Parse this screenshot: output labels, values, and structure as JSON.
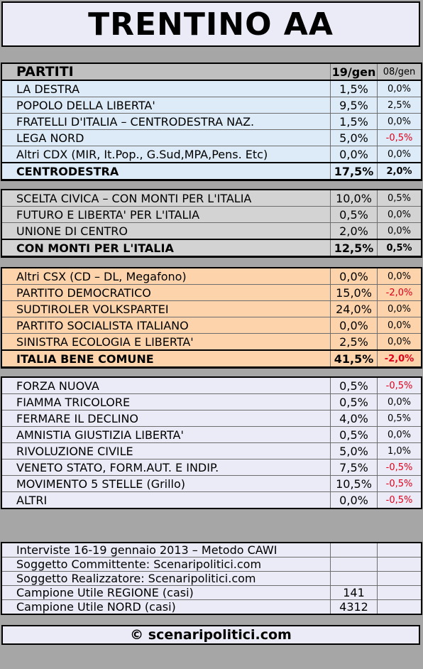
{
  "title": "TRENTINO AA",
  "chart_data": {
    "type": "table",
    "header": {
      "party": "PARTITI",
      "col1": "19/gen",
      "col2": "08/gen"
    },
    "groups": [
      {
        "color": "#dcebf7",
        "rows": [
          {
            "name": "LA DESTRA",
            "value": "1,5%",
            "delta": "0,0%"
          },
          {
            "name": "POPOLO DELLA LIBERTA'",
            "value": "9,5%",
            "delta": "2,5%"
          },
          {
            "name": "FRATELLI D'ITALIA – CENTRODESTRA NAZ.",
            "value": "1,5%",
            "delta": "0,0%"
          },
          {
            "name": "LEGA NORD",
            "value": "5,0%",
            "delta": "-0,5%"
          },
          {
            "name": "Altri CDX (MIR, It.Pop., G.Sud,MPA,Pens. Etc)",
            "value": "0,0%",
            "delta": "0,0%"
          }
        ],
        "total": {
          "name": "CENTRODESTRA",
          "value": "17,5%",
          "delta": "2,0%"
        }
      },
      {
        "color": "#d3d3d3",
        "rows": [
          {
            "name": "SCELTA CIVICA – CON MONTI PER L'ITALIA",
            "value": "10,0%",
            "delta": "0,5%"
          },
          {
            "name": "FUTURO E LIBERTA' PER L'ITALIA",
            "value": "0,5%",
            "delta": "0,0%"
          },
          {
            "name": "UNIONE DI CENTRO",
            "value": "2,0%",
            "delta": "0,0%"
          }
        ],
        "total": {
          "name": "CON MONTI PER L'ITALIA",
          "value": "12,5%",
          "delta": "0,5%"
        }
      },
      {
        "color": "#fcd3aa",
        "rows": [
          {
            "name": "Altri CSX (CD – DL, Megafono)",
            "value": "0,0%",
            "delta": "0,0%"
          },
          {
            "name": "PARTITO DEMOCRATICO",
            "value": "15,0%",
            "delta": "-2,0%"
          },
          {
            "name": "SUDTIROLER VOLKSPARTEI",
            "value": "24,0%",
            "delta": "0,0%"
          },
          {
            "name": "PARTITO SOCIALISTA ITALIANO",
            "value": "0,0%",
            "delta": "0,0%"
          },
          {
            "name": "SINISTRA ECOLOGIA E LIBERTA'",
            "value": "2,5%",
            "delta": "0,0%"
          }
        ],
        "total": {
          "name": "ITALIA BENE COMUNE",
          "value": "41,5%",
          "delta": "-2,0%"
        }
      },
      {
        "color": "#ebebf7",
        "rows": [
          {
            "name": "FORZA NUOVA",
            "value": "0,5%",
            "delta": "-0,5%"
          },
          {
            "name": "FIAMMA TRICOLORE",
            "value": "0,5%",
            "delta": "0,0%"
          },
          {
            "name": "FERMARE IL DECLINO",
            "value": "4,0%",
            "delta": "0,5%"
          },
          {
            "name": "AMNISTIA GIUSTIZIA LIBERTA'",
            "value": "0,5%",
            "delta": "0,0%"
          },
          {
            "name": "RIVOLUZIONE CIVILE",
            "value": "5,0%",
            "delta": "1,0%"
          },
          {
            "name": "VENETO STATO, FORM.AUT. E INDIP.",
            "value": "7,5%",
            "delta": "-0,5%"
          },
          {
            "name": "MOVIMENTO 5 STELLE (Grillo)",
            "value": "10,5%",
            "delta": "-0,5%"
          },
          {
            "name": "ALTRI",
            "value": "0,0%",
            "delta": "-0,5%"
          }
        ]
      }
    ]
  },
  "info": [
    {
      "label": "Interviste 16-19 gennaio 2013 – Metodo CAWI",
      "value": ""
    },
    {
      "label": "Soggetto Committente: Scenaripolitici.com",
      "value": ""
    },
    {
      "label": "Soggetto Realizzatore: Scenaripolitici.com",
      "value": ""
    },
    {
      "label": "Campione Utile REGIONE (casi)",
      "value": "141"
    },
    {
      "label": "Campione Utile NORD (casi)",
      "value": "4312"
    }
  ],
  "footer": "© scenaripolitici.com"
}
